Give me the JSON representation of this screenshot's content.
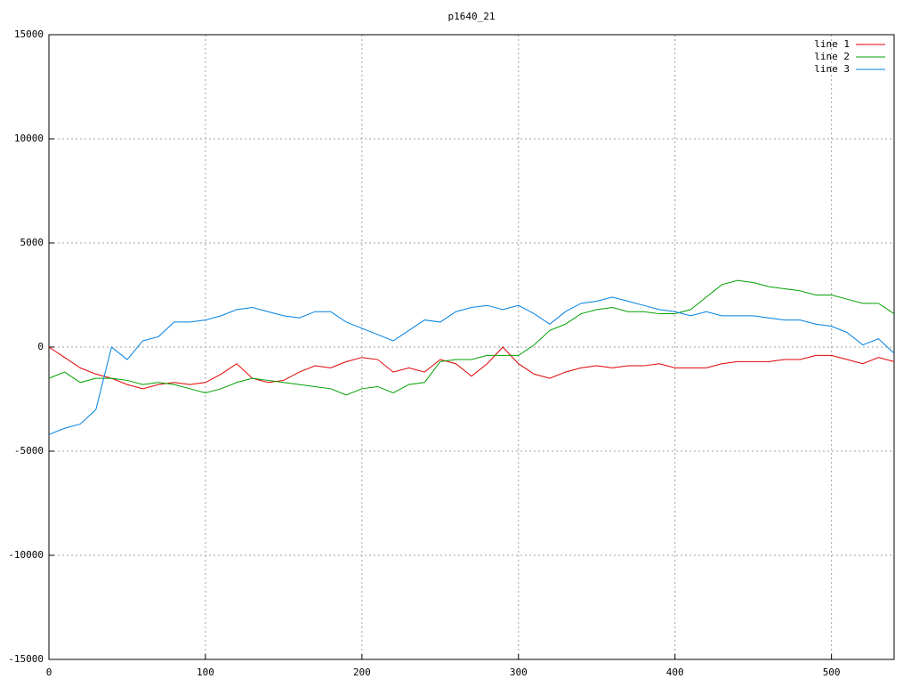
{
  "chart_data": {
    "type": "line",
    "title": "p1640_21",
    "x": [
      0,
      10,
      20,
      30,
      40,
      50,
      60,
      70,
      80,
      90,
      100,
      110,
      120,
      130,
      140,
      150,
      160,
      170,
      180,
      190,
      200,
      210,
      220,
      230,
      240,
      250,
      260,
      270,
      280,
      290,
      300,
      310,
      320,
      330,
      340,
      350,
      360,
      370,
      380,
      390,
      400,
      410,
      420,
      430,
      440,
      450,
      460,
      470,
      480,
      490,
      500,
      510,
      520,
      530,
      540
    ],
    "series": [
      {
        "name": "line 1",
        "color": "#e00000",
        "values": [
          0,
          -500,
          -1000,
          -1300,
          -1500,
          -1800,
          -2000,
          -1800,
          -1700,
          -1800,
          -1700,
          -1300,
          -800,
          -1500,
          -1700,
          -1600,
          -1200,
          -900,
          -1000,
          -700,
          -500,
          -600,
          -1200,
          -1000,
          -1200,
          -600,
          -800,
          -1400,
          -800,
          0,
          -800,
          -1300,
          -1500,
          -1200,
          -1000,
          -900,
          -1000,
          -900,
          -900,
          -800,
          -1000,
          -1000,
          -1000,
          -800,
          -700,
          -700,
          -700,
          -600,
          -600,
          -400,
          -400,
          -600,
          -800,
          -500,
          -700
        ]
      },
      {
        "name": "line 2",
        "color": "#00a000",
        "values": [
          -1500,
          -1200,
          -1700,
          -1500,
          -1500,
          -1600,
          -1800,
          -1700,
          -1800,
          -2000,
          -2200,
          -2000,
          -1700,
          -1500,
          -1600,
          -1700,
          -1800,
          -1900,
          -2000,
          -2300,
          -2000,
          -1900,
          -2200,
          -1800,
          -1700,
          -700,
          -600,
          -600,
          -400,
          -400,
          -400,
          100,
          800,
          1100,
          1600,
          1800,
          1900,
          1700,
          1700,
          1600,
          1600,
          1800,
          2400,
          3000,
          3200,
          3100,
          2900,
          2800,
          2700,
          2500,
          2500,
          2300,
          2100,
          2100,
          1600
        ]
      },
      {
        "name": "line 3",
        "color": "#0080e0",
        "values": [
          -4200,
          -3900,
          -3700,
          -3000,
          0,
          -600,
          300,
          500,
          1200,
          1200,
          1300,
          1500,
          1800,
          1900,
          1700,
          1500,
          1400,
          1700,
          1700,
          1200,
          900,
          600,
          300,
          800,
          1300,
          1200,
          1700,
          1900,
          2000,
          1800,
          2000,
          1600,
          1100,
          1700,
          2100,
          2200,
          2400,
          2200,
          2000,
          1800,
          1700,
          1500,
          1700,
          1500,
          1500,
          1500,
          1400,
          1300,
          1300,
          1100,
          1000,
          700,
          100,
          400,
          -300
        ]
      }
    ],
    "xlim": [
      0,
      540
    ],
    "xticks": [
      0,
      100,
      200,
      300,
      400,
      500
    ],
    "ylim": [
      -15000,
      15000
    ],
    "yticks": [
      -15000,
      -10000,
      -5000,
      0,
      5000,
      10000,
      15000
    ],
    "grid": true,
    "legend": "top-right"
  }
}
